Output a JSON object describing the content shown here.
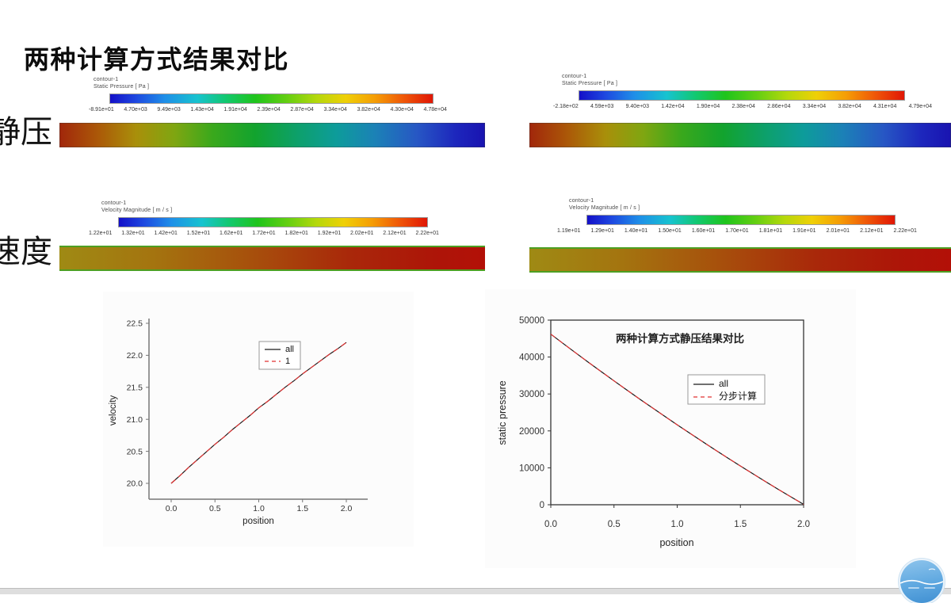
{
  "slide": {
    "title": "两种计算方式结果对比",
    "row_labels": {
      "pressure": "静压",
      "velocity": "速度"
    }
  },
  "colorbars": [
    {
      "name": "contour-1",
      "quantity": "Static Pressure [ Pa ]",
      "ticks": [
        "-8.91e+01",
        "4.70e+03",
        "9.49e+03",
        "1.43e+04",
        "1.91e+04",
        "2.39e+04",
        "2.87e+04",
        "3.34e+04",
        "3.82e+04",
        "4.30e+04",
        "4.78e+04"
      ]
    },
    {
      "name": "contour-1",
      "quantity": "Static Pressure [ Pa ]",
      "ticks": [
        "-2.18e+02",
        "4.59e+03",
        "9.40e+03",
        "1.42e+04",
        "1.90e+04",
        "2.38e+04",
        "2.86e+04",
        "3.34e+04",
        "3.82e+04",
        "4.31e+04",
        "4.79e+04"
      ]
    },
    {
      "name": "contour-1",
      "quantity": "Velocity Magnitude [ m / s ]",
      "ticks": [
        "1.22e+01",
        "1.32e+01",
        "1.42e+01",
        "1.52e+01",
        "1.62e+01",
        "1.72e+01",
        "1.82e+01",
        "1.92e+01",
        "2.02e+01",
        "2.12e+01",
        "2.22e+01"
      ]
    },
    {
      "name": "contour-1",
      "quantity": "Velocity Magnitude [ m / s ]",
      "ticks": [
        "1.19e+01",
        "1.29e+01",
        "1.40e+01",
        "1.50e+01",
        "1.60e+01",
        "1.70e+01",
        "1.81e+01",
        "1.91e+01",
        "2.01e+01",
        "2.12e+01",
        "2.22e+01"
      ]
    }
  ],
  "chart_data": [
    {
      "type": "line",
      "title": "",
      "xlabel": "position",
      "ylabel": "velocity",
      "xlim": [
        0,
        2
      ],
      "ylim": [
        20,
        22.5
      ],
      "grid": false,
      "legend_loc": "inside-upper-middle",
      "xticks": [
        0,
        0.5,
        1,
        1.5,
        2
      ],
      "xtick_labels": [
        "0.0",
        "0.5",
        "1.0",
        "1.5",
        "2.0"
      ],
      "yticks": [
        20,
        20.5,
        21,
        21.5,
        22,
        22.5
      ],
      "ytick_labels": [
        "20.0",
        "20.5",
        "21.0",
        "21.5",
        "22.0",
        "22.5"
      ],
      "x": [
        0,
        0.1,
        0.2,
        0.3,
        0.4,
        0.5,
        0.6,
        0.7,
        0.8,
        0.9,
        1.0,
        1.1,
        1.2,
        1.3,
        1.4,
        1.5,
        1.6,
        1.7,
        1.8,
        1.9,
        2.0
      ],
      "series": [
        {
          "name": "all",
          "color": "#1a1a1a",
          "dash": "solid",
          "values": [
            20.0,
            20.12,
            20.25,
            20.37,
            20.49,
            20.61,
            20.72,
            20.84,
            20.95,
            21.06,
            21.18,
            21.28,
            21.39,
            21.5,
            21.6,
            21.71,
            21.81,
            21.91,
            22.01,
            22.1,
            22.2
          ]
        },
        {
          "name": "1",
          "color": "#e03232",
          "dash": "dashed",
          "values": [
            20.0,
            20.12,
            20.25,
            20.37,
            20.49,
            20.61,
            20.72,
            20.84,
            20.95,
            21.06,
            21.18,
            21.28,
            21.39,
            21.5,
            21.6,
            21.71,
            21.81,
            21.91,
            22.01,
            22.1,
            22.2
          ]
        }
      ]
    },
    {
      "type": "line",
      "title": "两种计算方式静压结果对比",
      "xlabel": "position",
      "ylabel": "static pressure",
      "xlim": [
        0,
        2
      ],
      "ylim": [
        0,
        50000
      ],
      "grid": false,
      "legend_loc": "inside-middle-right",
      "xticks": [
        0,
        0.5,
        1,
        1.5,
        2
      ],
      "xtick_labels": [
        "0.0",
        "0.5",
        "1.0",
        "1.5",
        "2.0"
      ],
      "yticks": [
        0,
        10000,
        20000,
        30000,
        40000,
        50000
      ],
      "ytick_labels": [
        "0",
        "10000",
        "20000",
        "30000",
        "40000",
        "50000"
      ],
      "x": [
        0,
        0.1,
        0.2,
        0.3,
        0.4,
        0.5,
        0.6,
        0.7,
        0.8,
        0.9,
        1.0,
        1.1,
        1.2,
        1.3,
        1.4,
        1.5,
        1.6,
        1.7,
        1.8,
        1.9,
        2.0
      ],
      "series": [
        {
          "name": "all",
          "color": "#1a1a1a",
          "dash": "solid",
          "values": [
            46200,
            43610,
            41050,
            38520,
            36020,
            33550,
            31110,
            28700,
            26320,
            23970,
            21650,
            19360,
            17100,
            14870,
            12670,
            10500,
            8360,
            6250,
            4170,
            2120,
            100
          ]
        },
        {
          "name": "分步计算",
          "color": "#e03232",
          "dash": "dashed",
          "values": [
            46200,
            43610,
            41050,
            38520,
            36020,
            33550,
            31110,
            28700,
            26320,
            23970,
            21650,
            19360,
            17100,
            14870,
            12670,
            10500,
            8360,
            6250,
            4170,
            2120,
            100
          ]
        }
      ]
    }
  ]
}
